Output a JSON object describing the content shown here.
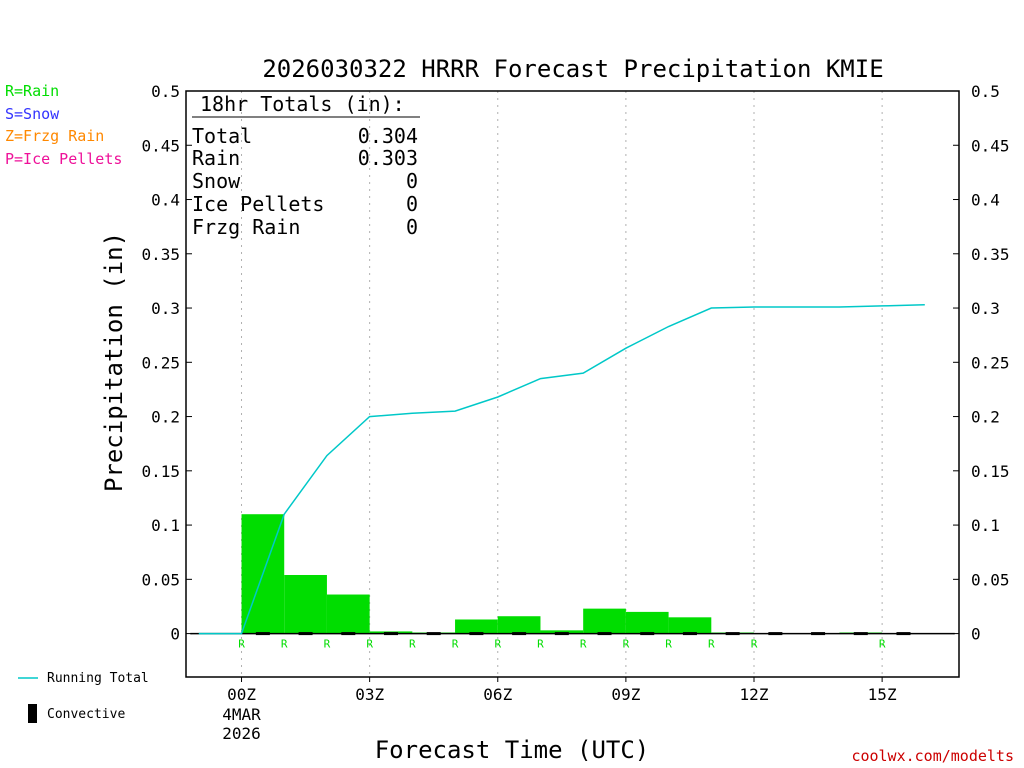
{
  "chart_data": {
    "type": "bar",
    "title": "2026030322 HRRR Forecast Precipitation KMIE",
    "xlabel": "Forecast Time (UTC)",
    "ylabel": "Precipitation (in)",
    "ylim": [
      -0.04,
      0.5
    ],
    "xlim": [
      -1.3,
      16.8
    ],
    "yticks": [
      0,
      0.05,
      0.1,
      0.15,
      0.2,
      0.25,
      0.3,
      0.35,
      0.4,
      0.45,
      0.5
    ],
    "ytick_labels": [
      "0",
      "0.05",
      "0.1",
      "0.15",
      "0.2",
      "0.25",
      "0.3",
      "0.35",
      "0.4",
      "0.45",
      "0.5"
    ],
    "xticks": [
      {
        "x": 0,
        "label": "00Z",
        "sub1": "4MAR",
        "sub2": "2026"
      },
      {
        "x": 3,
        "label": "03Z"
      },
      {
        "x": 6,
        "label": "06Z"
      },
      {
        "x": 9,
        "label": "09Z"
      },
      {
        "x": 12,
        "label": "12Z"
      },
      {
        "x": 15,
        "label": "15Z"
      }
    ],
    "grid": "vertical dotted",
    "bar_series": {
      "name": "R=Rain",
      "color": "#00dd00",
      "hours": [
        1,
        2,
        3,
        4,
        5,
        6,
        7,
        8,
        9,
        10,
        11,
        12,
        13,
        14,
        15,
        16
      ],
      "values": [
        0.11,
        0.054,
        0.036,
        0.002,
        0.001,
        0.013,
        0.016,
        0.003,
        0.023,
        0.02,
        0.015,
        0.001,
        0.0,
        0.0,
        0.001,
        0.0
      ]
    },
    "running_total": {
      "name": "Running Total",
      "color": "#00c8c8",
      "x": [
        -1,
        0,
        1,
        2,
        3,
        4,
        5,
        6,
        7,
        8,
        9,
        10,
        11,
        12,
        13,
        14,
        15,
        16
      ],
      "values": [
        0.0,
        0.0,
        0.11,
        0.164,
        0.2,
        0.203,
        0.205,
        0.218,
        0.235,
        0.24,
        0.263,
        0.283,
        0.3,
        0.301,
        0.301,
        0.301,
        0.302,
        0.303
      ]
    },
    "convective": {
      "name": "Convective",
      "color": "#000000",
      "values": [
        0,
        0,
        0,
        0,
        0,
        0,
        0,
        0,
        0,
        0,
        0,
        0,
        0,
        0,
        0,
        0
      ]
    },
    "ptype_markers": {
      "letter": "R",
      "color": "#00dd00",
      "x": [
        0,
        1,
        2,
        3,
        4,
        5,
        6,
        7,
        8,
        9,
        10,
        11,
        12,
        15
      ]
    },
    "totals_box": {
      "header": "18hr Totals (in):",
      "rows": [
        {
          "label": "Total",
          "value": "0.304"
        },
        {
          "label": "Rain",
          "value": "0.303"
        },
        {
          "label": "Snow",
          "value": "0"
        },
        {
          "label": "Ice Pellets",
          "value": "0"
        },
        {
          "label": "Frzg Rain",
          "value": "0"
        }
      ]
    }
  },
  "legend_ptypes": [
    {
      "text": "R=Rain",
      "color": "#00dd00"
    },
    {
      "text": "S=Snow",
      "color": "#3333ff"
    },
    {
      "text": "Z=Frzg Rain",
      "color": "#ff8800"
    },
    {
      "text": "P=Ice Pellets",
      "color": "#ee1199"
    }
  ],
  "legend_bottom": {
    "running_total": "Running Total",
    "convective": "Convective"
  },
  "credit": "coolwx.com/modelts",
  "credit_color": "#cc0000"
}
